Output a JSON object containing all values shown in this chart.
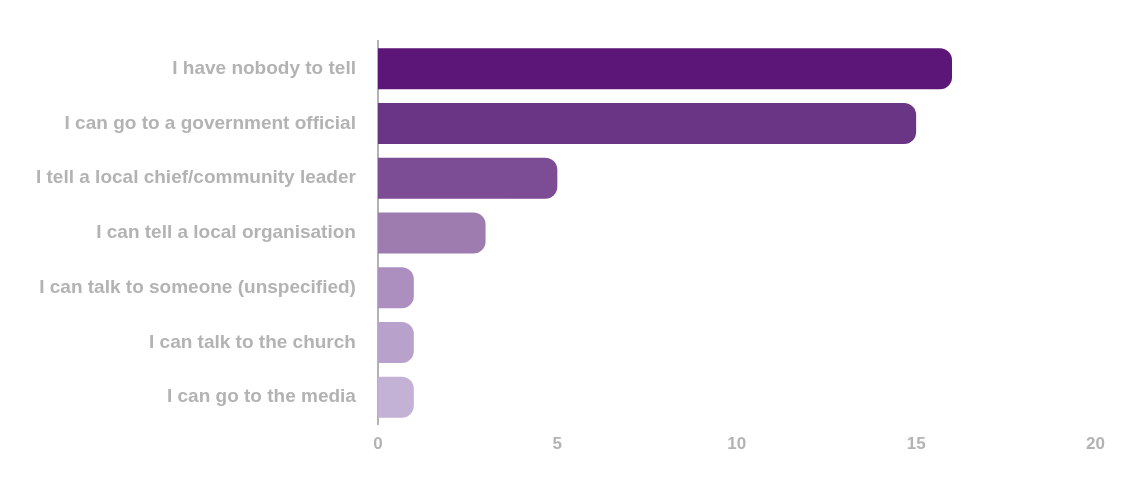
{
  "chart_data": {
    "type": "bar",
    "orientation": "horizontal",
    "categories": [
      "I have nobody to tell",
      "I can go to a government official",
      "I tell a local chief/community leader",
      "I can tell a local organisation",
      "I can talk to someone (unspecified)",
      "I can talk to the church",
      "I can go to the media"
    ],
    "values": [
      16,
      15,
      5,
      3,
      1,
      1,
      1
    ],
    "colors": [
      "#5c1677",
      "#6a3585",
      "#7c4c94",
      "#9e7cb0",
      "#ac8ebf",
      "#b8a1cb",
      "#c3b1d6"
    ],
    "xlim": [
      0,
      20
    ],
    "xticks": [
      0,
      5,
      10,
      15,
      20
    ],
    "grid": false
  }
}
